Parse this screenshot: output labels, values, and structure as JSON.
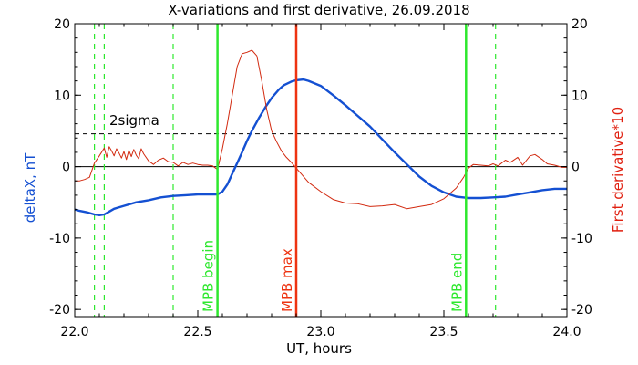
{
  "chart_data": {
    "type": "line",
    "title": "X-variations and first derivative, 26.09.2018",
    "xlabel": "UT, hours",
    "ylabel_left": "deltaX, nT",
    "ylabel_right": "First derivative*10",
    "xlim": [
      22.0,
      24.0
    ],
    "ylim": [
      -21,
      20
    ],
    "x_ticks": [
      "22.0",
      "22.5",
      "23.0",
      "23.5",
      "24.0"
    ],
    "x_tick_values": [
      22.0,
      22.5,
      23.0,
      23.5,
      24.0
    ],
    "y_ticks_left": [
      "-20",
      "-10",
      "0",
      "10",
      "20"
    ],
    "y_ticks_right": [
      "-20",
      "-10",
      "0",
      "10",
      "20"
    ],
    "y_tick_values": [
      -20,
      -10,
      0,
      10,
      20
    ],
    "grid": false,
    "colors": {
      "deltaX": "#1450d2",
      "derivative": "#d22a10",
      "mpb_begin_end": "#2ee82e",
      "mpb_max": "#ee3311",
      "threshold": "#000000",
      "left_label": "#1450d2",
      "right_label": "#e02010"
    },
    "threshold": {
      "label": "2sigma",
      "value": 4.6
    },
    "zero_line": 0,
    "markers": [
      {
        "label": "MPB begin",
        "x": 22.58,
        "style": "solid",
        "color": "#2ee82e"
      },
      {
        "label": "MPB max",
        "x": 22.9,
        "style": "solid",
        "color": "#ee3311"
      },
      {
        "label": "MPB end",
        "x": 23.59,
        "style": "solid",
        "color": "#2ee82e"
      }
    ],
    "dashed_markers": [
      22.08,
      22.12,
      22.4,
      23.71
    ],
    "series": [
      {
        "key": "deltaX",
        "axis": "left",
        "width": 2.4,
        "x": [
          22.0,
          22.02,
          22.05,
          22.08,
          22.1,
          22.12,
          22.14,
          22.16,
          22.2,
          22.25,
          22.3,
          22.35,
          22.4,
          22.45,
          22.5,
          22.55,
          22.58,
          22.6,
          22.62,
          22.64,
          22.66,
          22.68,
          22.7,
          22.72,
          22.75,
          22.78,
          22.8,
          22.83,
          22.85,
          22.88,
          22.9,
          22.93,
          22.95,
          23.0,
          23.05,
          23.1,
          23.15,
          23.2,
          23.25,
          23.3,
          23.35,
          23.4,
          23.45,
          23.5,
          23.55,
          23.6,
          23.65,
          23.7,
          23.75,
          23.8,
          23.85,
          23.9,
          23.95,
          24.0
        ],
        "y": [
          -6.0,
          -6.2,
          -6.4,
          -6.7,
          -6.8,
          -6.7,
          -6.3,
          -5.9,
          -5.5,
          -5.0,
          -4.7,
          -4.3,
          -4.1,
          -4.0,
          -3.9,
          -3.9,
          -3.9,
          -3.5,
          -2.5,
          -1.0,
          0.5,
          2.0,
          3.6,
          5.0,
          6.9,
          8.6,
          9.6,
          10.8,
          11.4,
          11.9,
          12.1,
          12.2,
          12.0,
          11.3,
          10.0,
          8.6,
          7.1,
          5.6,
          3.8,
          2.0,
          0.3,
          -1.4,
          -2.7,
          -3.6,
          -4.2,
          -4.4,
          -4.4,
          -4.3,
          -4.2,
          -3.9,
          -3.6,
          -3.3,
          -3.1,
          -3.1
        ]
      },
      {
        "key": "derivative",
        "axis": "right",
        "width": 1,
        "x": [
          22.0,
          22.02,
          22.04,
          22.06,
          22.08,
          22.1,
          22.12,
          22.13,
          22.14,
          22.15,
          22.16,
          22.17,
          22.18,
          22.19,
          22.2,
          22.21,
          22.22,
          22.23,
          22.24,
          22.25,
          22.26,
          22.27,
          22.28,
          22.3,
          22.32,
          22.34,
          22.36,
          22.38,
          22.4,
          22.42,
          22.44,
          22.46,
          22.48,
          22.5,
          22.52,
          22.54,
          22.56,
          22.58,
          22.6,
          22.62,
          22.64,
          22.66,
          22.68,
          22.7,
          22.72,
          22.74,
          22.76,
          22.78,
          22.8,
          22.82,
          22.84,
          22.86,
          22.88,
          22.9,
          22.92,
          22.95,
          23.0,
          23.05,
          23.1,
          23.15,
          23.2,
          23.25,
          23.3,
          23.35,
          23.4,
          23.45,
          23.5,
          23.55,
          23.58,
          23.6,
          23.62,
          23.65,
          23.68,
          23.7,
          23.72,
          23.75,
          23.77,
          23.8,
          23.82,
          23.85,
          23.87,
          23.9,
          23.92,
          23.95,
          23.98,
          24.0
        ],
        "y": [
          -2.0,
          -2.0,
          -1.8,
          -1.5,
          0.5,
          1.5,
          2.6,
          1.3,
          2.8,
          2.2,
          1.5,
          2.5,
          1.9,
          1.2,
          2.1,
          1.0,
          2.3,
          1.4,
          2.4,
          1.6,
          1.1,
          2.5,
          1.8,
          0.8,
          0.3,
          0.9,
          1.2,
          0.7,
          0.6,
          0.1,
          0.6,
          0.3,
          0.5,
          0.3,
          0.2,
          0.2,
          0.1,
          -0.4,
          2.5,
          6.0,
          10.0,
          14.0,
          15.8,
          16.0,
          16.3,
          15.5,
          12.0,
          8.0,
          5.0,
          3.5,
          2.2,
          1.3,
          0.6,
          -0.2,
          -1.0,
          -2.2,
          -3.5,
          -4.6,
          -5.1,
          -5.2,
          -5.6,
          -5.5,
          -5.3,
          -5.9,
          -5.6,
          -5.3,
          -4.5,
          -3.0,
          -1.5,
          -0.2,
          0.3,
          0.2,
          0.1,
          0.4,
          0.1,
          0.9,
          0.6,
          1.3,
          0.2,
          1.5,
          1.7,
          1.0,
          0.4,
          0.2,
          -0.1,
          -0.1
        ]
      }
    ]
  }
}
